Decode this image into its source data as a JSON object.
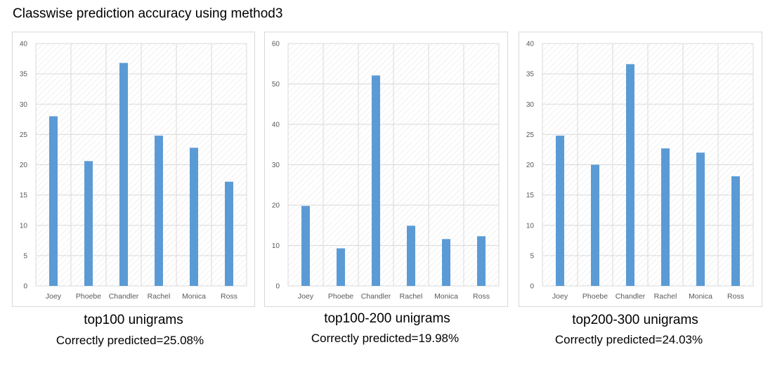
{
  "page_title": "Classwise prediction accuracy using method3",
  "colors": {
    "bar": "#5b9bd5",
    "grid": "#d9d9d9",
    "hatch": "#e3e3e3",
    "border": "#d9d9d9"
  },
  "chart_data": [
    {
      "type": "bar",
      "categories": [
        "Joey",
        "Phoebe",
        "Chandler",
        "Rachel",
        "Monica",
        "Ross"
      ],
      "values": [
        28.0,
        20.6,
        36.8,
        24.8,
        22.8,
        17.2
      ],
      "ylim": [
        0,
        40
      ],
      "yticks": [
        0,
        5,
        10,
        15,
        20,
        25,
        30,
        35,
        40
      ],
      "title": "top100 unigrams",
      "subtitle": "Correctly predicted=25.08%",
      "grid": true
    },
    {
      "type": "bar",
      "categories": [
        "Joey",
        "Phoebe",
        "Chandler",
        "Rachel",
        "Monica",
        "Ross"
      ],
      "values": [
        19.8,
        9.3,
        52.1,
        14.9,
        11.6,
        12.3
      ],
      "ylim": [
        0,
        60
      ],
      "yticks": [
        0,
        10,
        20,
        30,
        40,
        50,
        60
      ],
      "title": "top100-200 unigrams",
      "subtitle": "Correctly predicted=19.98%",
      "grid": true
    },
    {
      "type": "bar",
      "categories": [
        "Joey",
        "Phoebe",
        "Chandler",
        "Rachel",
        "Monica",
        "Ross"
      ],
      "values": [
        24.8,
        20.0,
        36.6,
        22.7,
        22.0,
        18.1
      ],
      "ylim": [
        0,
        40
      ],
      "yticks": [
        0,
        5,
        10,
        15,
        20,
        25,
        30,
        35,
        40
      ],
      "title": "top200-300 unigrams",
      "subtitle": "Correctly predicted=24.03%",
      "grid": true
    }
  ]
}
